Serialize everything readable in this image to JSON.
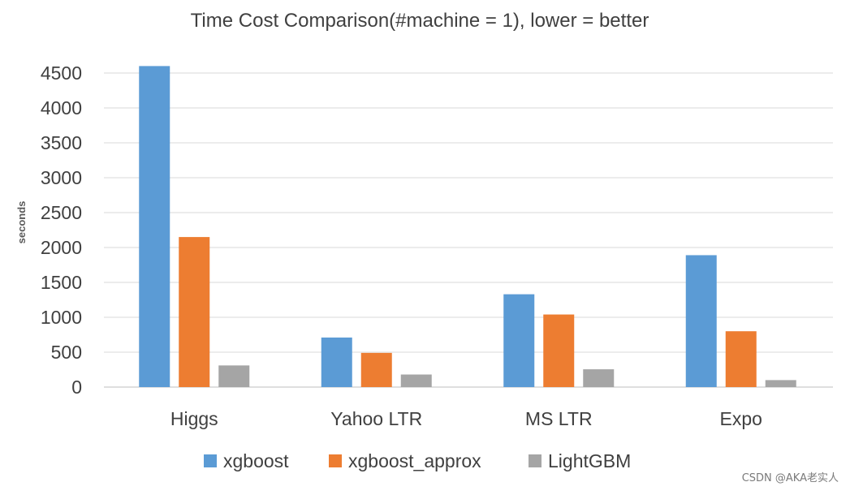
{
  "chart_data": {
    "type": "bar",
    "title": "Time Cost Comparison(#machine = 1), lower = better",
    "xlabel": "",
    "ylabel": "seconds",
    "categories": [
      "Higgs",
      "Yahoo LTR",
      "MS LTR",
      "Expo"
    ],
    "series": [
      {
        "name": "xgboost",
        "color": "#5B9BD5",
        "values": [
          4600,
          710,
          1330,
          1890
        ]
      },
      {
        "name": "xgboost_approx",
        "color": "#ED7D31",
        "values": [
          2150,
          490,
          1040,
          800
        ]
      },
      {
        "name": "LightGBM",
        "color": "#A5A5A5",
        "values": [
          310,
          180,
          255,
          100
        ]
      }
    ],
    "ylim": [
      0,
      4500
    ],
    "yticks": [
      0,
      500,
      1000,
      1500,
      2000,
      2500,
      3000,
      3500,
      4000,
      4500
    ],
    "grid": true,
    "legend_position": "bottom"
  },
  "watermark": "CSDN @AKA老实人"
}
